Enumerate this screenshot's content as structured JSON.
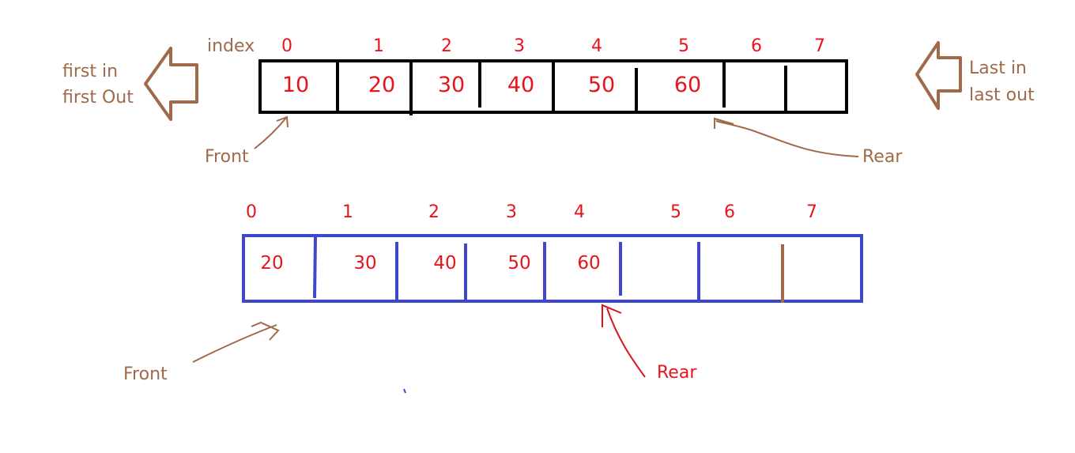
{
  "colors": {
    "annotation": "#a0694a",
    "value_text": "#e8141c",
    "queue1_border": "#000000",
    "queue2_border": "#3f48cc",
    "rear_arrow_2": "#d9141c",
    "queue2_last_divider": "#a0694a"
  },
  "queue_before": {
    "index_label": "index",
    "indices": [
      "0",
      "1",
      "2",
      "3",
      "4",
      "5",
      "6",
      "7"
    ],
    "values": [
      "10",
      "20",
      "30",
      "40",
      "50",
      "60",
      "",
      ""
    ],
    "front_label": "Front",
    "rear_label": "Rear"
  },
  "queue_after": {
    "indices": [
      "0",
      "1",
      "2",
      "3",
      "4",
      "5",
      "6",
      "7"
    ],
    "values": [
      "20",
      "30",
      "40",
      "50",
      "60",
      "",
      "",
      ""
    ],
    "front_label": "Front",
    "rear_label": "Rear"
  },
  "left_note": {
    "line1": "first in",
    "line2": "first Out",
    "icon": "arrow-left-outline"
  },
  "right_note": {
    "line1": "Last in",
    "line2": "last out",
    "icon": "arrow-left-outline"
  }
}
